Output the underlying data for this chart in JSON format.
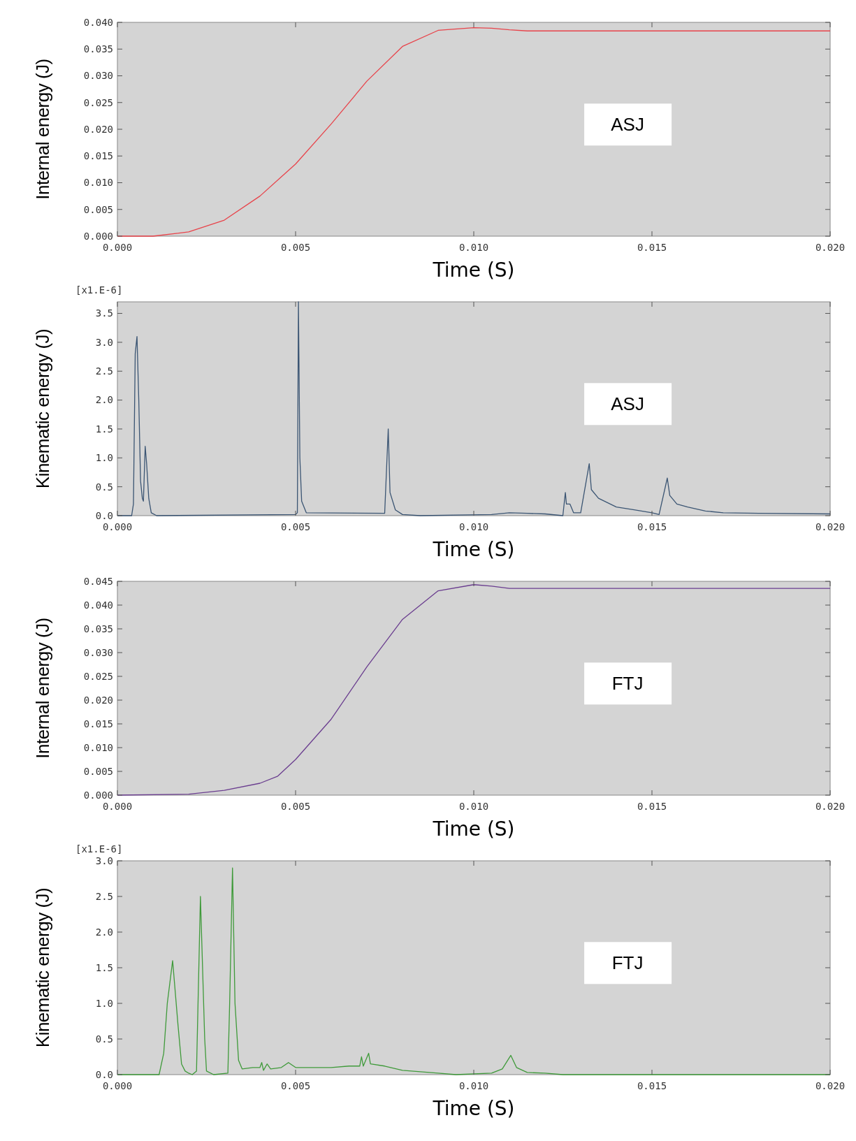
{
  "chart_data": [
    {
      "type": "line",
      "xlabel": "Time (S)",
      "ylabel": "Internal energy (J)",
      "annotations": [
        "ASJ"
      ],
      "xlim": [
        0,
        0.02
      ],
      "ylim": [
        0,
        0.04
      ],
      "xticks": [
        {
          "value": 0,
          "label": "0.000"
        },
        {
          "value": 0.005,
          "label": "0.005"
        },
        {
          "value": 0.01,
          "label": "0.010"
        },
        {
          "value": 0.015,
          "label": "0.015"
        },
        {
          "value": 0.02,
          "label": "0.020"
        }
      ],
      "yticks": [
        {
          "value": 0,
          "label": "0.000"
        },
        {
          "value": 0.005,
          "label": "0.005"
        },
        {
          "value": 0.01,
          "label": "0.010"
        },
        {
          "value": 0.015,
          "label": "0.015"
        },
        {
          "value": 0.02,
          "label": "0.020"
        },
        {
          "value": 0.025,
          "label": "0.025"
        },
        {
          "value": 0.03,
          "label": "0.030"
        },
        {
          "value": 0.035,
          "label": "0.035"
        },
        {
          "value": 0.04,
          "label": "0.040"
        }
      ],
      "grid": false,
      "marker": "none",
      "line_style": "solid",
      "series": [
        {
          "color": "#e8434a",
          "x": [
            0,
            0.001,
            0.002,
            0.003,
            0.004,
            0.005,
            0.006,
            0.007,
            0.008,
            0.009,
            0.01,
            0.0105,
            0.011,
            0.0115,
            0.012,
            0.02
          ],
          "values": [
            0,
            0,
            0.0008,
            0.003,
            0.0075,
            0.0135,
            0.021,
            0.029,
            0.0355,
            0.0385,
            0.039,
            0.0389,
            0.0386,
            0.0384,
            0.0384,
            0.0384
          ]
        }
      ]
    },
    {
      "type": "line",
      "xlabel": "Time (S)",
      "ylabel": "Kinematic energy (J)",
      "annotations": [
        "[x1.E-6]",
        "ASJ"
      ],
      "xlim": [
        0,
        0.02
      ],
      "ylim": [
        0,
        3.7
      ],
      "xticks": [
        {
          "value": 0,
          "label": "0.000"
        },
        {
          "value": 0.005,
          "label": "0.005"
        },
        {
          "value": 0.01,
          "label": "0.010"
        },
        {
          "value": 0.015,
          "label": "0.015"
        },
        {
          "value": 0.02,
          "label": "0.020"
        }
      ],
      "yticks": [
        {
          "value": 0,
          "label": "0.0"
        },
        {
          "value": 0.5,
          "label": "0.5"
        },
        {
          "value": 1,
          "label": "1.0"
        },
        {
          "value": 1.5,
          "label": "1.5"
        },
        {
          "value": 2,
          "label": "2.0"
        },
        {
          "value": 2.5,
          "label": "2.5"
        },
        {
          "value": 3,
          "label": "3.0"
        },
        {
          "value": 3.5,
          "label": "3.5"
        }
      ],
      "grid": false,
      "marker": "none",
      "line_style": "solid",
      "series": [
        {
          "color": "#3b5573",
          "x": [
            0,
            0.0004,
            0.00045,
            0.0005,
            0.00055,
            0.0006,
            0.00065,
            0.0007,
            0.00073,
            0.00078,
            0.00082,
            0.00088,
            0.00095,
            0.0011,
            0.005,
            0.00505,
            0.00508,
            0.00512,
            0.00517,
            0.0053,
            0.0075,
            0.0076,
            0.00765,
            0.0078,
            0.008,
            0.0085,
            0.0105,
            0.011,
            0.0115,
            0.012,
            0.0125,
            0.01257,
            0.0126,
            0.0127,
            0.0128,
            0.013,
            0.01324,
            0.0133,
            0.0135,
            0.014,
            0.0145,
            0.015,
            0.0152,
            0.01543,
            0.0155,
            0.0157,
            0.016,
            0.0165,
            0.017,
            0.018,
            0.02
          ],
          "values": [
            0,
            0,
            0.2,
            2.8,
            3.1,
            2.0,
            0.6,
            0.3,
            0.25,
            1.2,
            0.9,
            0.3,
            0.05,
            0,
            0.02,
            0.05,
            3.7,
            1.0,
            0.25,
            0.05,
            0.04,
            1.5,
            0.4,
            0.1,
            0.02,
            0,
            0.02,
            0.05,
            0.04,
            0.03,
            0,
            0.4,
            0.2,
            0.2,
            0.05,
            0.05,
            0.9,
            0.45,
            0.3,
            0.15,
            0.1,
            0.05,
            0.02,
            0.65,
            0.35,
            0.2,
            0.15,
            0.08,
            0.05,
            0.04,
            0.03
          ]
        }
      ]
    },
    {
      "type": "line",
      "xlabel": "Time (S)",
      "ylabel": "Internal energy (J)",
      "annotations": [
        "FTJ"
      ],
      "xlim": [
        0,
        0.02
      ],
      "ylim": [
        0,
        0.045
      ],
      "xticks": [
        {
          "value": 0,
          "label": "0.000"
        },
        {
          "value": 0.005,
          "label": "0.005"
        },
        {
          "value": 0.01,
          "label": "0.010"
        },
        {
          "value": 0.015,
          "label": "0.015"
        },
        {
          "value": 0.02,
          "label": "0.020"
        }
      ],
      "yticks": [
        {
          "value": 0,
          "label": "0.000"
        },
        {
          "value": 0.005,
          "label": "0.005"
        },
        {
          "value": 0.01,
          "label": "0.010"
        },
        {
          "value": 0.015,
          "label": "0.015"
        },
        {
          "value": 0.02,
          "label": "0.020"
        },
        {
          "value": 0.025,
          "label": "0.025"
        },
        {
          "value": 0.03,
          "label": "0.030"
        },
        {
          "value": 0.035,
          "label": "0.035"
        },
        {
          "value": 0.04,
          "label": "0.040"
        },
        {
          "value": 0.045,
          "label": "0.045"
        }
      ],
      "grid": false,
      "marker": "none",
      "line_style": "solid",
      "series": [
        {
          "color": "#6a3d8f",
          "x": [
            0,
            0.002,
            0.003,
            0.004,
            0.0045,
            0.005,
            0.006,
            0.007,
            0.008,
            0.009,
            0.01,
            0.0105,
            0.011,
            0.02
          ],
          "values": [
            0,
            0.0002,
            0.001,
            0.0025,
            0.004,
            0.0075,
            0.016,
            0.027,
            0.037,
            0.043,
            0.0443,
            0.044,
            0.0435,
            0.0435
          ]
        }
      ]
    },
    {
      "type": "line",
      "xlabel": "Time (S)",
      "ylabel": "Kinematic energy (J)",
      "annotations": [
        "[x1.E-6]",
        "FTJ"
      ],
      "xlim": [
        0,
        0.02
      ],
      "ylim": [
        0,
        3
      ],
      "xticks": [
        {
          "value": 0,
          "label": "0.000"
        },
        {
          "value": 0.005,
          "label": "0.005"
        },
        {
          "value": 0.01,
          "label": "0.010"
        },
        {
          "value": 0.015,
          "label": "0.015"
        },
        {
          "value": 0.02,
          "label": "0.020"
        }
      ],
      "yticks": [
        {
          "value": 0,
          "label": "0.0"
        },
        {
          "value": 0.5,
          "label": "0.5"
        },
        {
          "value": 1,
          "label": "1.0"
        },
        {
          "value": 1.5,
          "label": "1.5"
        },
        {
          "value": 2,
          "label": "2.0"
        },
        {
          "value": 2.5,
          "label": "2.5"
        },
        {
          "value": 3,
          "label": "3.0"
        }
      ],
      "grid": false,
      "marker": "none",
      "line_style": "solid",
      "series": [
        {
          "color": "#3f9a3a",
          "x": [
            0,
            0.00117,
            0.0013,
            0.0014,
            0.00155,
            0.0017,
            0.0018,
            0.0019,
            0.002,
            0.0021,
            0.00222,
            0.00233,
            0.00245,
            0.0025,
            0.0027,
            0.0031,
            0.00315,
            0.00323,
            0.0033,
            0.0034,
            0.0035,
            0.0038,
            0.004,
            0.00405,
            0.0041,
            0.0042,
            0.0043,
            0.0046,
            0.0048,
            0.005,
            0.006,
            0.0065,
            0.0068,
            0.00685,
            0.0069,
            0.00705,
            0.0071,
            0.0075,
            0.008,
            0.0085,
            0.009,
            0.0095,
            0.0105,
            0.0108,
            0.01104,
            0.0112,
            0.0115,
            0.012,
            0.0125,
            0.02
          ],
          "values": [
            0,
            0,
            0.3,
            1.0,
            1.6,
            0.7,
            0.15,
            0.05,
            0.02,
            0,
            0.05,
            2.5,
            0.5,
            0.05,
            0,
            0.02,
            1.0,
            2.9,
            1.0,
            0.2,
            0.08,
            0.1,
            0.1,
            0.17,
            0.06,
            0.15,
            0.08,
            0.1,
            0.17,
            0.1,
            0.1,
            0.12,
            0.12,
            0.25,
            0.12,
            0.3,
            0.15,
            0.12,
            0.06,
            0.04,
            0.02,
            0,
            0.02,
            0.08,
            0.27,
            0.1,
            0.03,
            0.02,
            0,
            0
          ]
        }
      ]
    }
  ]
}
